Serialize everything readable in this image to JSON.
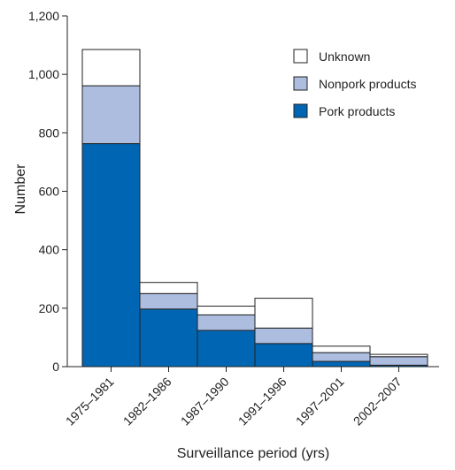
{
  "chart_data": {
    "type": "bar",
    "stacked": true,
    "title": "",
    "xlabel": "Surveillance period (yrs)",
    "ylabel": "Number",
    "ylim": [
      0,
      1200
    ],
    "yticks": [
      0,
      200,
      400,
      600,
      800,
      1000,
      1200
    ],
    "ytick_labels": [
      "0",
      "200",
      "400",
      "600",
      "800",
      "1,000",
      "1,200"
    ],
    "categories": [
      "1975–1981",
      "1982–1986",
      "1987–1990",
      "1991–1996",
      "1997–2001",
      "2002–2007"
    ],
    "series": [
      {
        "name": "Pork products",
        "color": "#0066b3",
        "values": [
          763,
          197,
          124,
          79,
          18,
          5
        ]
      },
      {
        "name": "Nonpork products",
        "color": "#adbde0",
        "values": [
          198,
          53,
          53,
          53,
          30,
          29
        ]
      },
      {
        "name": "Unknown",
        "color": "#ffffff",
        "values": [
          124,
          38,
          30,
          102,
          22,
          8
        ]
      }
    ],
    "legend": {
      "placement": "top-right",
      "order": [
        "Unknown",
        "Nonpork products",
        "Pork products"
      ]
    },
    "grid": false
  }
}
